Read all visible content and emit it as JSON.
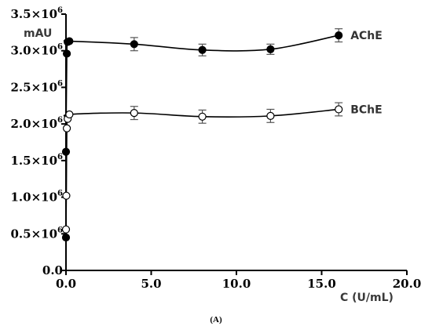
{
  "chart_data": {
    "type": "scatter",
    "caption": "(A)",
    "y_unit_label": "mAU",
    "xlabel": "C (U/mL)",
    "xlim": [
      0,
      20
    ],
    "ylim": [
      0,
      3500000
    ],
    "x_ticks": [
      0,
      5,
      10,
      15,
      20
    ],
    "x_tick_labels": [
      "0.0",
      "5.0",
      "10.0",
      "15.0",
      "20.0"
    ],
    "y_ticks": [
      0,
      500000,
      1000000,
      1500000,
      2000000,
      2500000,
      3000000,
      3500000
    ],
    "y_tick_labels": [
      {
        "mantissa": "0.0",
        "exp": ""
      },
      {
        "mantissa": "0.5×10",
        "exp": "6"
      },
      {
        "mantissa": "1.0×10",
        "exp": "6"
      },
      {
        "mantissa": "1.5×10",
        "exp": "6"
      },
      {
        "mantissa": "2.0×10",
        "exp": "6"
      },
      {
        "mantissa": "2.5×10",
        "exp": "6"
      },
      {
        "mantissa": "3.0×10",
        "exp": "6"
      },
      {
        "mantissa": "3.5×10",
        "exp": "6"
      }
    ],
    "series": [
      {
        "name": "AChE",
        "marker": "filled-circle",
        "color": "#000000",
        "x": [
          0.0,
          0.0,
          0.05,
          0.1,
          0.2,
          4.0,
          8.0,
          12.0,
          16.0
        ],
        "y": [
          450000,
          1620000,
          2960000,
          3120000,
          3130000,
          3090000,
          3010000,
          3020000,
          3210000
        ],
        "error": [
          0,
          0,
          0,
          0,
          0,
          90000,
          80000,
          70000,
          90000
        ]
      },
      {
        "name": "BChE",
        "marker": "open-circle",
        "color": "#000000",
        "x": [
          0.0,
          0.02,
          0.05,
          0.1,
          0.2,
          4.0,
          8.0,
          12.0,
          16.0
        ],
        "y": [
          560000,
          1020000,
          1940000,
          2070000,
          2130000,
          2150000,
          2100000,
          2110000,
          2200000
        ],
        "error": [
          0,
          0,
          0,
          0,
          0,
          90000,
          90000,
          90000,
          90000
        ]
      }
    ]
  }
}
